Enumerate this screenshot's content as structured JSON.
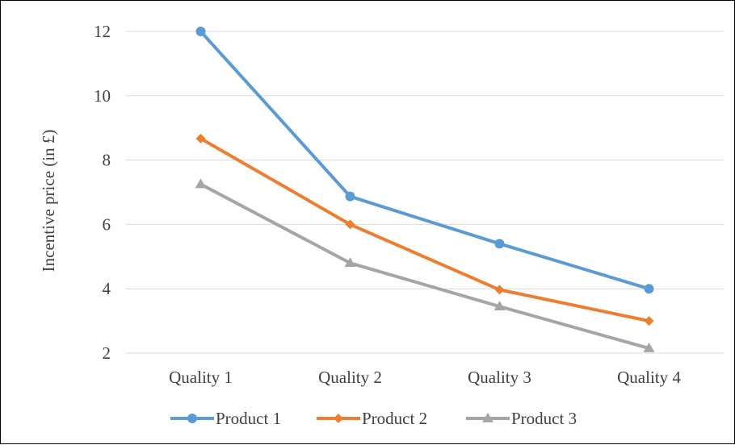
{
  "chart_data": {
    "type": "line",
    "categories": [
      "Quality 1",
      "Quality 2",
      "Quality 3",
      "Quality 4"
    ],
    "series": [
      {
        "name": "Product 1",
        "values": [
          12.0,
          6.87,
          5.4,
          4.0
        ],
        "color": "#5b9bd5",
        "marker": "circle"
      },
      {
        "name": "Product 2",
        "values": [
          8.67,
          6.0,
          3.97,
          3.0
        ],
        "color": "#ed7d31",
        "marker": "diamond"
      },
      {
        "name": "Product 3",
        "values": [
          7.25,
          4.8,
          3.45,
          2.15
        ],
        "color": "#a5a5a5",
        "marker": "triangle"
      }
    ],
    "ylabel": "Incentive price (in £)",
    "xlabel": "",
    "ylim": [
      2,
      12
    ],
    "yticks": [
      2,
      4,
      6,
      8,
      10,
      12
    ],
    "grid": true,
    "legend": "bottom"
  }
}
